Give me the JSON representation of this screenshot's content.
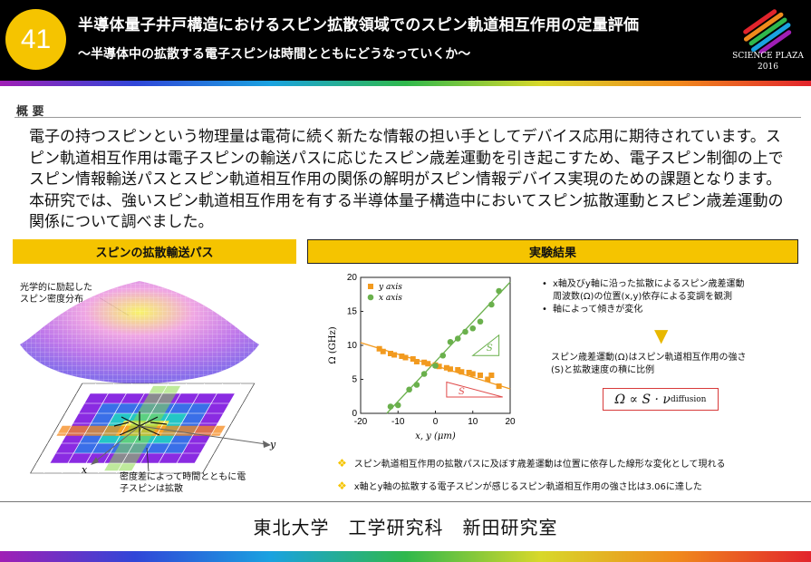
{
  "header": {
    "number": "41",
    "title": "半導体量子井戸構造におけるスピン拡散領域でのスピン軌道相互作用の定量評価",
    "subtitle": "～半導体中の拡散する電子スピンは時間とともにどうなっていくか～",
    "logo_line1": "SCIENCE PLAZA",
    "logo_line2": "2016"
  },
  "overview": {
    "label": "概 要",
    "text": "電子の持つスピンという物理量は電荷に続く新たな情報の担い手としてデバイス応用に期待されています。スピン軌道相互作用は電子スピンの輸送パスに応じたスピン歳差運動を引き起こすため、電子スピン制御の上でスピン情報輸送パスとスピン軌道相互作用の関係の解明がスピン情報デバイス実現のための課題となります。本研究では、強いスピン軌道相互作用を有する半導体量子構造中においてスピン拡散運動とスピン歳差運動の関係について調べました。"
  },
  "left_panel": {
    "title": "スピンの拡散輸送パス",
    "label_top_1": "光学的に励起した",
    "label_top_2": "スピン密度分布",
    "label_bottom_1": "密度差によって時間とともに電",
    "label_bottom_2": "子スピンは拡散",
    "axis_x": "x",
    "axis_y": "y"
  },
  "right_panel": {
    "title": "実験結果",
    "bullet1_line1": "x軸及びy軸に沿った拡散によるスピン歳差運動",
    "bullet1_line2": "周波数(Ω)の位置(x,y)依存による変調を観測",
    "bullet2": "軸によって傾きが変化",
    "result_line1": "スピン歳差運動(Ω)はスピン軌道相互作用の強さ",
    "result_line2": "(S)と拡散速度の積に比例",
    "formula": "Ω ∝ S · ν",
    "formula_sub": "diffusion",
    "note1": "スピン軌道相互作用の拡散パスに及ぼす歳差運動は位置に依存した線形な変化として現れる",
    "note2": "x軸とy軸の拡散する電子スピンが感じるスピン軌道相互作用の強さ比は3.06に達した"
  },
  "chart_data": {
    "type": "scatter",
    "xlabel": "x, y (μm)",
    "ylabel": "Ω (GHz)",
    "xlim": [
      -20,
      20
    ],
    "ylim": [
      0,
      20
    ],
    "xticks": [
      "-20",
      "-10",
      "0",
      "10",
      "20"
    ],
    "yticks": [
      "0",
      "5",
      "10",
      "15",
      "20"
    ],
    "legend": [
      "y axis",
      "x axis"
    ],
    "slope_label": "S",
    "series": [
      {
        "name": "y axis",
        "color": "#f29a1f",
        "marker": "square",
        "x": [
          -15,
          -14,
          -12,
          -11,
          -9,
          -8,
          -6,
          -5,
          -3,
          -2,
          0,
          1,
          3,
          4,
          6,
          7,
          9,
          10,
          12,
          14,
          15,
          17
        ],
        "y": [
          9.5,
          9.1,
          8.8,
          8.6,
          8.4,
          8.2,
          8.0,
          7.6,
          7.5,
          7.3,
          7.1,
          6.9,
          6.7,
          6.5,
          6.4,
          6.1,
          6.0,
          5.8,
          5.6,
          5.0,
          5.6,
          4.0
        ]
      },
      {
        "name": "x axis",
        "color": "#6ab04c",
        "marker": "circle",
        "x": [
          -12,
          -10,
          -7,
          -5,
          -3,
          0,
          2,
          4,
          6,
          8,
          10,
          12,
          15,
          17
        ],
        "y": [
          1.0,
          1.2,
          3.5,
          4.2,
          5.8,
          7.0,
          8.5,
          10.5,
          11.0,
          12.0,
          12.5,
          13.5,
          16.0,
          18.0
        ]
      }
    ],
    "fit_lines": [
      {
        "name": "y axis fit",
        "x": [
          -20,
          20
        ],
        "y": [
          10.4,
          3.6
        ]
      },
      {
        "name": "x axis fit",
        "x": [
          -13,
          20
        ],
        "y": [
          0,
          19.3
        ]
      }
    ]
  },
  "footer": {
    "organization": "東北大学　工学研究科　新田研究室"
  }
}
